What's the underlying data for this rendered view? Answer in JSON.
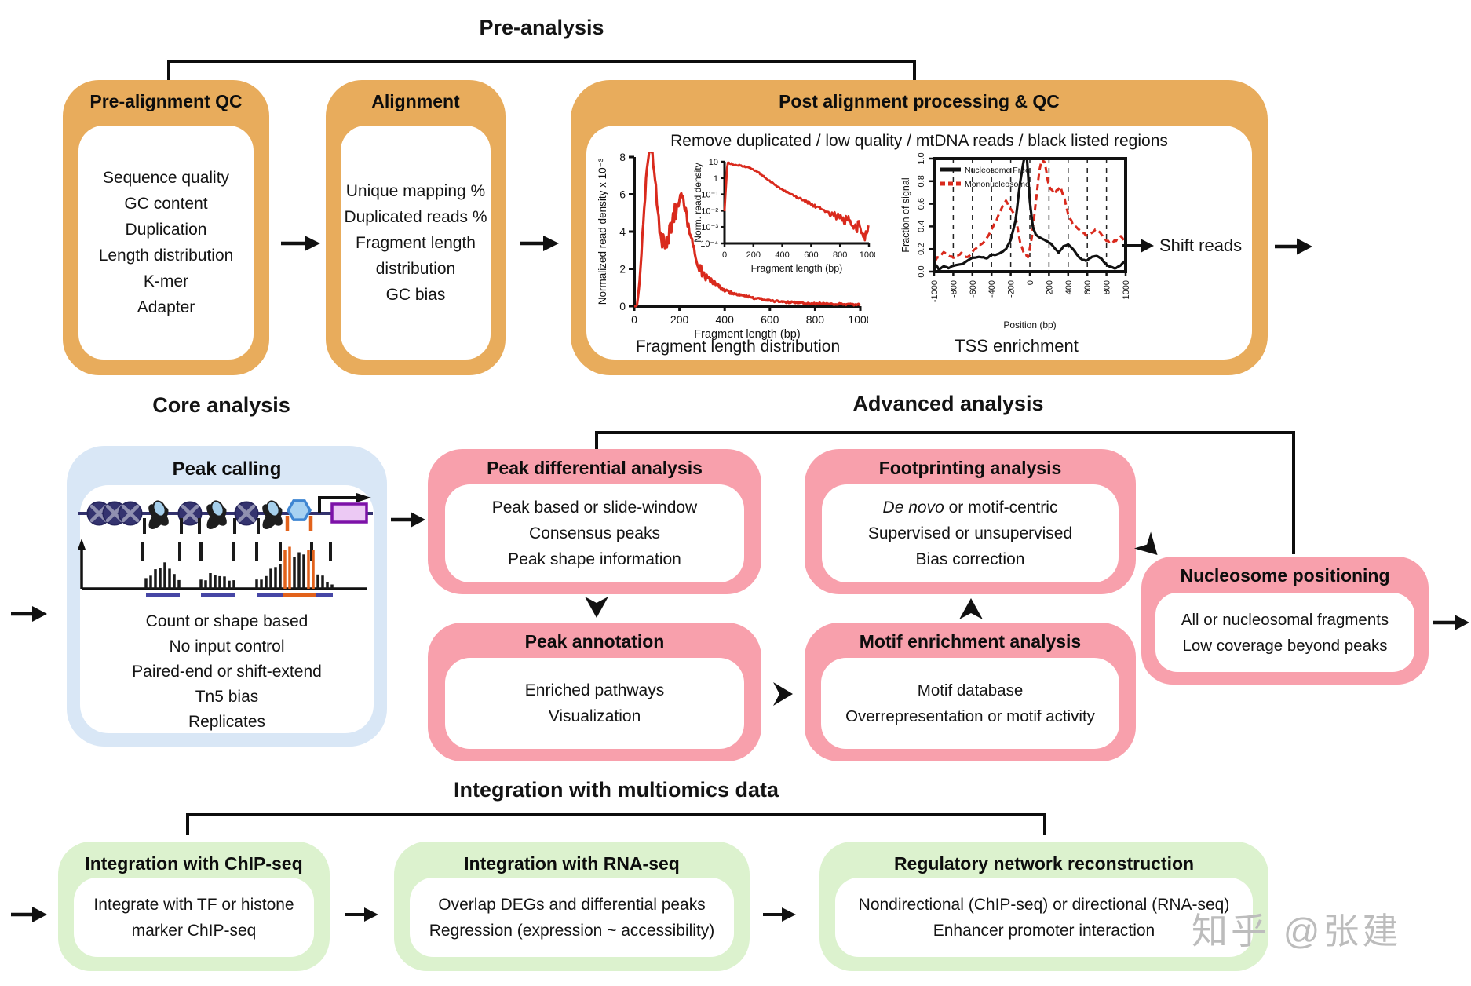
{
  "headers": {
    "pre": "Pre-analysis",
    "core": "Core analysis",
    "advanced": "Advanced analysis",
    "integration": "Integration with multiomics data"
  },
  "colors": {
    "orange": "#E8AC5C",
    "pink": "#F8A0AC",
    "green": "#DCF2CE",
    "blue": "#D9E7F6",
    "red": "#D92A1D",
    "navy": "#33326E",
    "orange_accent": "#E2621B"
  },
  "boxes": {
    "pre_alignment_qc": {
      "title": "Pre-alignment QC",
      "items": [
        "Sequence quality",
        "GC content",
        "Duplication",
        "Length distribution",
        "K-mer",
        "Adapter"
      ]
    },
    "alignment": {
      "title": "Alignment",
      "items": [
        "Unique mapping %",
        "Duplicated reads %",
        "Fragment length distribution",
        "GC bias"
      ]
    },
    "post_alignment": {
      "title": "Post alignment processing & QC",
      "note": "Remove duplicated / low quality / mtDNA reads / black listed regions",
      "shift_label": "Shift reads",
      "plots": {
        "fragment_length": {
          "ylabel": "Normalized read density x 10⁻³",
          "yticks": [
            0,
            2,
            4,
            6,
            8
          ],
          "xticks": [
            0,
            200,
            400,
            600,
            800,
            1000
          ],
          "xlabel": "Fragment length (bp)",
          "caption": "Fragment length distribution"
        },
        "fragment_length_inset": {
          "ylabel": "Norm. read density",
          "ytick_labels": [
            "10",
            "1",
            "10⁻¹",
            "10⁻²",
            "10⁻³",
            "10⁻⁴"
          ],
          "xticks": [
            0,
            200,
            400,
            600,
            800,
            1000
          ],
          "xlabel": "Fragment length (bp)"
        },
        "tss": {
          "ylabel": "Fraction of signal",
          "yticks": [
            "0.0",
            "0.2",
            "0.4",
            "0.6",
            "0.8",
            "1.0"
          ],
          "xticks": [
            -1000,
            -800,
            -600,
            -400,
            -200,
            0,
            200,
            400,
            600,
            800,
            1000
          ],
          "xlabel": "Position (bp)",
          "legend": [
            {
              "label": "Nucleosome Free",
              "color": "#111111",
              "style": "solid"
            },
            {
              "label": "Mononucleosome",
              "color": "#D92A1D",
              "style": "dashed"
            }
          ],
          "caption": "TSS enrichment"
        }
      }
    },
    "peak_calling": {
      "title": "Peak calling",
      "items": [
        "Count or shape based",
        "No input control",
        "Paired-end or shift-extend",
        "Tn5 bias",
        "Replicates"
      ]
    },
    "peak_differential": {
      "title": "Peak differential analysis",
      "items": [
        "Peak based or slide-window",
        "Consensus peaks",
        "Peak shape information"
      ]
    },
    "footprinting": {
      "title": "Footprinting analysis",
      "item1_em": "De novo",
      "item1_rest": " or motif-centric",
      "items": [
        "Supervised or unsupervised",
        "Bias correction"
      ]
    },
    "peak_annotation": {
      "title": "Peak annotation",
      "items": [
        "Enriched pathways",
        "Visualization"
      ]
    },
    "motif_enrichment": {
      "title": "Motif enrichment analysis",
      "items": [
        "Motif database",
        "Overrepresentation or motif activity"
      ]
    },
    "nucleosome_positioning": {
      "title": "Nucleosome positioning",
      "items": [
        "All or nucleosomal fragments",
        "Low coverage beyond peaks"
      ]
    },
    "chip_seq": {
      "title": "Integration with ChIP-seq",
      "items": [
        "Integrate with TF or histone marker ChIP-seq"
      ]
    },
    "rna_seq": {
      "title": "Integration with RNA-seq",
      "items": [
        "Overlap DEGs and differential peaks",
        "Regression (expression ~ accessibility)"
      ]
    },
    "regulatory_network": {
      "title": "Regulatory network reconstruction",
      "items": [
        "Nondirectional (ChIP-seq) or directional (RNA-seq)",
        "Enhancer promoter interaction"
      ]
    }
  },
  "watermark": "知乎 @张建"
}
